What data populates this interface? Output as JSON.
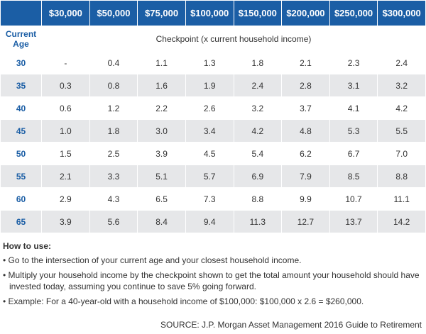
{
  "table": {
    "headers": [
      "$30,000",
      "$50,000",
      "$75,000",
      "$100,000",
      "$150,000",
      "$200,000",
      "$250,000",
      "$300,000"
    ],
    "age_label": "Current Age",
    "checkpoint_label": "Checkpoint (x current household income)",
    "rows": [
      {
        "age": "30",
        "values": [
          "-",
          "0.4",
          "1.1",
          "1.3",
          "1.8",
          "2.1",
          "2.3",
          "2.4"
        ]
      },
      {
        "age": "35",
        "values": [
          "0.3",
          "0.8",
          "1.6",
          "1.9",
          "2.4",
          "2.8",
          "3.1",
          "3.2"
        ]
      },
      {
        "age": "40",
        "values": [
          "0.6",
          "1.2",
          "2.2",
          "2.6",
          "3.2",
          "3.7",
          "4.1",
          "4.2"
        ]
      },
      {
        "age": "45",
        "values": [
          "1.0",
          "1.8",
          "3.0",
          "3.4",
          "4.2",
          "4.8",
          "5.3",
          "5.5"
        ]
      },
      {
        "age": "50",
        "values": [
          "1.5",
          "2.5",
          "3.9",
          "4.5",
          "5.4",
          "6.2",
          "6.7",
          "7.0"
        ]
      },
      {
        "age": "55",
        "values": [
          "2.1",
          "3.3",
          "5.1",
          "5.7",
          "6.9",
          "7.9",
          "8.5",
          "8.8"
        ]
      },
      {
        "age": "60",
        "values": [
          "2.9",
          "4.3",
          "6.5",
          "7.3",
          "8.8",
          "9.9",
          "10.7",
          "11.1"
        ]
      },
      {
        "age": "65",
        "values": [
          "3.9",
          "5.6",
          "8.4",
          "9.4",
          "11.3",
          "12.7",
          "13.7",
          "14.2"
        ]
      }
    ]
  },
  "notes": {
    "title": "How to use:",
    "items": [
      "Go to the intersection of your current age and your closest household income.",
      "Multiply your household income by the checkpoint shown to get the total amount your household should have invested today, assuming you continue to save 5% going forward.",
      "Example: For a 40-year-old with a household income of $100,000: $100,000 x 2.6 = $260,000."
    ]
  },
  "source": "SOURCE: J.P. Morgan Asset Management 2016 Guide to Retirement"
}
